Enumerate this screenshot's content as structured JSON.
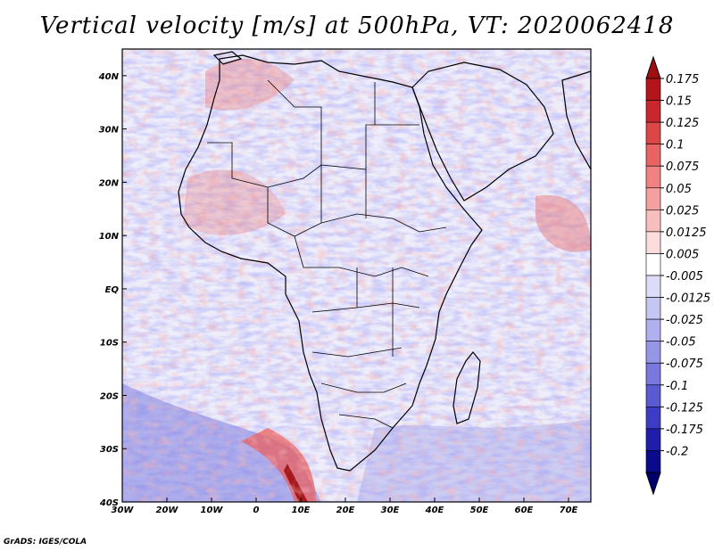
{
  "title": "Vertical velocity [m/s] at 500hPa, VT: 2020062418",
  "credit": "GrADS: IGES/COLA",
  "map": {
    "lon_ticks": [
      "30W",
      "20W",
      "10W",
      "0",
      "10E",
      "20E",
      "30E",
      "40E",
      "50E",
      "60E",
      "70E"
    ],
    "lat_ticks": [
      "40N",
      "30N",
      "20N",
      "10N",
      "EQ",
      "10S",
      "20S",
      "30S",
      "40S"
    ],
    "lon_range": [
      -30,
      75
    ],
    "lat_range": [
      -40,
      45
    ]
  },
  "colorbar": {
    "labels": [
      "0.175",
      "0.15",
      "0.125",
      "0.1",
      "0.075",
      "0.05",
      "0.025",
      "0.0125",
      "0.005",
      "-0.005",
      "-0.0125",
      "-0.025",
      "-0.05",
      "-0.075",
      "-0.1",
      "-0.125",
      "-0.175",
      "-0.2"
    ],
    "colors": [
      "#b4141c",
      "#c8282d",
      "#dc4646",
      "#e86464",
      "#f08282",
      "#f5a0a0",
      "#f8bebe",
      "#fcdcdc",
      "#ffffff",
      "#dcdcf8",
      "#c6c6f2",
      "#b0b0ee",
      "#9696e6",
      "#7878de",
      "#5a5ad2",
      "#3c3cc4",
      "#1e1eaa",
      "#0a0a8c"
    ],
    "top_color": "#a01010",
    "bottom_color": "#00006e"
  },
  "colors": {
    "land_red": "#e87070",
    "ocean_blue": "#8c8ce8",
    "background": "#eeeefb"
  }
}
